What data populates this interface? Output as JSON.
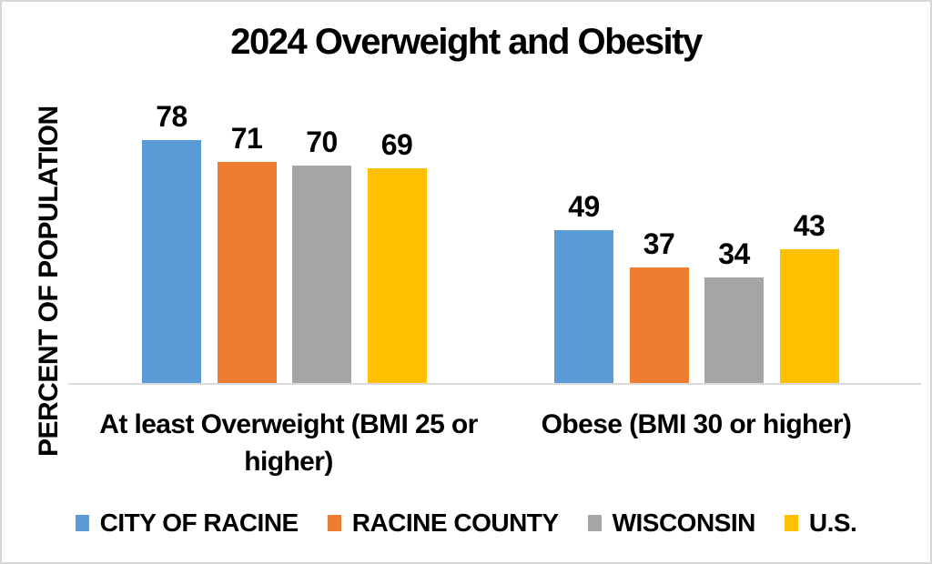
{
  "frame": {
    "background_color": "#ffffff",
    "border_color": "#d8d8d8"
  },
  "chart_data": {
    "type": "bar",
    "title": "2024 Overweight and Obesity",
    "xlabel": "",
    "ylabel": "PERCENT OF POPULATION",
    "categories": [
      "At least Overweight (BMI 25 or higher)",
      "Obese (BMI 30 or higher)"
    ],
    "series": [
      {
        "name": "CITY OF RACINE",
        "color": "#5B9BD5",
        "values": [
          78,
          49
        ]
      },
      {
        "name": "RACINE COUNTY",
        "color": "#ED7D31",
        "values": [
          71,
          37
        ]
      },
      {
        "name": "WISCONSIN",
        "color": "#A5A5A5",
        "values": [
          70,
          34
        ]
      },
      {
        "name": "U.S.",
        "color": "#FFC000",
        "values": [
          69,
          43
        ]
      }
    ],
    "value_labels_shown": true,
    "ylim": [
      0,
      90
    ],
    "grid": false,
    "axis_line_color": "#d9d9d9",
    "legend_position": "bottom"
  }
}
